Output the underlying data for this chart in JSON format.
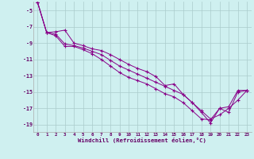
{
  "xlabel": "Windchill (Refroidissement éolien,°C)",
  "bg_color": "#cff0f0",
  "grid_color": "#aacccc",
  "line_color": "#880088",
  "x_values": [
    0,
    1,
    2,
    3,
    4,
    5,
    6,
    7,
    8,
    9,
    10,
    11,
    12,
    13,
    14,
    15,
    16,
    17,
    18,
    19,
    20,
    21,
    22,
    23
  ],
  "line1": [
    -4.0,
    -7.7,
    -7.6,
    -7.4,
    -9.0,
    -9.3,
    -9.7,
    -9.9,
    -10.4,
    -11.0,
    -11.6,
    -12.1,
    -12.5,
    -13.1,
    -14.2,
    -14.0,
    -15.3,
    -16.3,
    -17.5,
    -18.8,
    -17.0,
    -17.5,
    -15.0,
    -14.8
  ],
  "line2": [
    -4.0,
    -7.7,
    -7.9,
    -9.1,
    -9.3,
    -9.6,
    -10.0,
    -10.4,
    -11.1,
    -11.8,
    -12.3,
    -12.8,
    -13.3,
    -13.8,
    -14.3,
    -14.8,
    -15.3,
    -16.3,
    -17.3,
    -18.3,
    -17.8,
    -17.0,
    -16.0,
    -14.8
  ],
  "line3": [
    -4.0,
    -7.7,
    -8.1,
    -9.4,
    -9.4,
    -9.8,
    -10.3,
    -11.0,
    -11.8,
    -12.6,
    -13.2,
    -13.6,
    -14.0,
    -14.6,
    -15.2,
    -15.6,
    -16.3,
    -17.3,
    -18.3,
    -18.4,
    -17.0,
    -16.8,
    -14.8,
    -14.8
  ],
  "ylim": [
    -19.9,
    -3.9
  ],
  "xlim": [
    -0.5,
    23.5
  ],
  "ytick_locs": [
    -19,
    -17,
    -15,
    -13,
    -11,
    -9,
    -7,
    -5
  ],
  "ytick_labels": [
    "-19",
    "-17",
    "-15",
    "-13",
    "-11",
    "-9",
    "-7",
    "-5"
  ],
  "xtick_locs": [
    0,
    1,
    2,
    3,
    4,
    5,
    6,
    7,
    8,
    9,
    10,
    11,
    12,
    13,
    14,
    15,
    16,
    17,
    18,
    19,
    20,
    21,
    22,
    23
  ],
  "xtick_labels": [
    "0",
    "1",
    "2",
    "3",
    "4",
    "5",
    "6",
    "7",
    "8",
    "9",
    "10",
    "11",
    "12",
    "13",
    "14",
    "15",
    "16",
    "17",
    "18",
    "19",
    "20",
    "21",
    "22",
    "23"
  ]
}
